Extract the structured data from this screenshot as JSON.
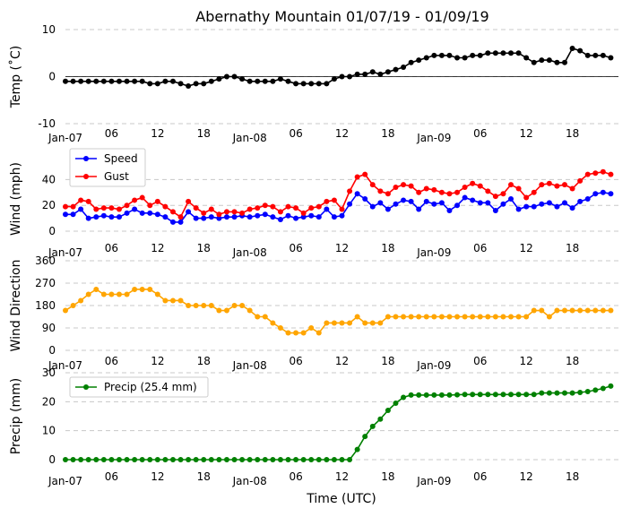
{
  "chart_data": {
    "title": "Abernathy Mountain 01/07/19 - 01/09/19",
    "xlabel": "Time (UTC)",
    "x_tick_labels": [
      "Jan-07",
      "06",
      "12",
      "18",
      "Jan-08",
      "06",
      "12",
      "18",
      "Jan-09",
      "06",
      "12",
      "18"
    ],
    "x_tick_hours": [
      0,
      6,
      12,
      18,
      24,
      30,
      36,
      42,
      48,
      54,
      60,
      66
    ],
    "hours": [
      0,
      1,
      2,
      3,
      4,
      5,
      6,
      7,
      8,
      9,
      10,
      11,
      12,
      13,
      14,
      15,
      16,
      17,
      18,
      19,
      20,
      21,
      22,
      23,
      24,
      25,
      26,
      27,
      28,
      29,
      30,
      31,
      32,
      33,
      34,
      35,
      36,
      37,
      38,
      39,
      40,
      41,
      42,
      43,
      44,
      45,
      46,
      47,
      48,
      49,
      50,
      51,
      52,
      53,
      54,
      55,
      56,
      57,
      58,
      59,
      60,
      61,
      62,
      63,
      64,
      65,
      66,
      67,
      68,
      69,
      70,
      71
    ],
    "panels": [
      {
        "type": "line",
        "ylabel": "Temp (˚C)",
        "ylim": [
          -10,
          10
        ],
        "yticks": [
          -10,
          0,
          10
        ],
        "zero_line": true,
        "legend": false,
        "series": [
          {
            "color": "#000000",
            "values": [
              -1,
              -1,
              -1,
              -1,
              -1,
              -1,
              -1,
              -1,
              -1,
              -1,
              -1,
              -1.5,
              -1.5,
              -1,
              -1,
              -1.5,
              -2,
              -1.5,
              -1.5,
              -1,
              -0.5,
              0,
              0,
              -0.5,
              -1,
              -1,
              -1,
              -1,
              -0.5,
              -1,
              -1.5,
              -1.5,
              -1.5,
              -1.5,
              -1.5,
              -0.5,
              0,
              0,
              0.5,
              0.5,
              1,
              0.5,
              1,
              1.5,
              2,
              3,
              3.5,
              4,
              4.5,
              4.5,
              4.5,
              4,
              4,
              4.5,
              4.5,
              5,
              5,
              5,
              5,
              5,
              4,
              3,
              3.5,
              3.5,
              3,
              3,
              6,
              5.5,
              4.5,
              4.5,
              4.5,
              4
            ]
          }
        ]
      },
      {
        "type": "line",
        "ylabel": "Wind (mph)",
        "ylim": [
          0,
          50
        ],
        "yticks": [
          0,
          20,
          40
        ],
        "legend": true,
        "legend_position": "upper-left",
        "series": [
          {
            "name": "Speed",
            "color": "#0000ff",
            "values": [
              13,
              13,
              17,
              10,
              11,
              12,
              11,
              11,
              14,
              17,
              14,
              14,
              13,
              11,
              7,
              7,
              15,
              10,
              10,
              11,
              10,
              11,
              11,
              12,
              11,
              12,
              13,
              11,
              9,
              12,
              10,
              11,
              12,
              11,
              17,
              11,
              12,
              21,
              29,
              25,
              19,
              22,
              17,
              21,
              24,
              23,
              17,
              23,
              21,
              22,
              16,
              20,
              26,
              24,
              22,
              22,
              16,
              21,
              25,
              17,
              19,
              19,
              21,
              22,
              19,
              22,
              18,
              23,
              25,
              29,
              30,
              29
            ]
          },
          {
            "name": "Gust",
            "color": "#ff0000",
            "values": [
              19,
              19,
              24,
              23,
              17,
              18,
              18,
              17,
              20,
              24,
              26,
              20,
              23,
              19,
              15,
              11,
              23,
              18,
              14,
              17,
              13,
              15,
              15,
              14,
              17,
              18,
              20,
              19,
              15,
              19,
              18,
              14,
              18,
              19,
              23,
              24,
              17,
              31,
              42,
              44,
              36,
              31,
              29,
              34,
              36,
              35,
              30,
              33,
              32,
              30,
              29,
              30,
              34,
              37,
              35,
              31,
              27,
              29,
              36,
              33,
              26,
              30,
              36,
              37,
              35,
              36,
              33,
              39,
              44,
              45,
              46,
              44
            ]
          }
        ]
      },
      {
        "type": "line",
        "ylabel": "Wind Direction",
        "ylim": [
          0,
          360
        ],
        "yticks": [
          0,
          90,
          180,
          270,
          360
        ],
        "legend": false,
        "series": [
          {
            "color": "#ffa500",
            "values": [
              160,
              180,
              200,
              225,
              245,
              225,
              225,
              225,
              225,
              245,
              245,
              245,
              225,
              200,
              200,
              200,
              180,
              180,
              180,
              180,
              160,
              160,
              180,
              180,
              160,
              135,
              135,
              110,
              90,
              70,
              70,
              70,
              90,
              70,
              110,
              110,
              110,
              110,
              135,
              110,
              110,
              110,
              135,
              135,
              135,
              135,
              135,
              135,
              135,
              135,
              135,
              135,
              135,
              135,
              135,
              135,
              135,
              135,
              135,
              135,
              135,
              160,
              160,
              135,
              160,
              160,
              160,
              160,
              160,
              160,
              160,
              160
            ]
          }
        ]
      },
      {
        "type": "line",
        "ylabel": "Precip (mm)",
        "ylim": [
          0,
          30
        ],
        "yticks": [
          0,
          10,
          20,
          30
        ],
        "legend": true,
        "legend_position": "upper-left",
        "series": [
          {
            "name": "Precip (25.4 mm)",
            "color": "#008000",
            "values": [
              0,
              0,
              0,
              0,
              0,
              0,
              0,
              0,
              0,
              0,
              0,
              0,
              0,
              0,
              0,
              0,
              0,
              0,
              0,
              0,
              0,
              0,
              0,
              0,
              0,
              0,
              0,
              0,
              0,
              0,
              0,
              0,
              0,
              0,
              0,
              0,
              0,
              0,
              3.5,
              8,
              11.5,
              14,
              17,
              19.5,
              21.5,
              22.3,
              22.3,
              22.3,
              22.3,
              22.3,
              22.3,
              22.4,
              22.5,
              22.5,
              22.5,
              22.5,
              22.5,
              22.5,
              22.5,
              22.5,
              22.5,
              22.5,
              23,
              23,
              23,
              23,
              23,
              23.2,
              23.5,
              24,
              24.6,
              25.4
            ]
          }
        ]
      }
    ]
  }
}
